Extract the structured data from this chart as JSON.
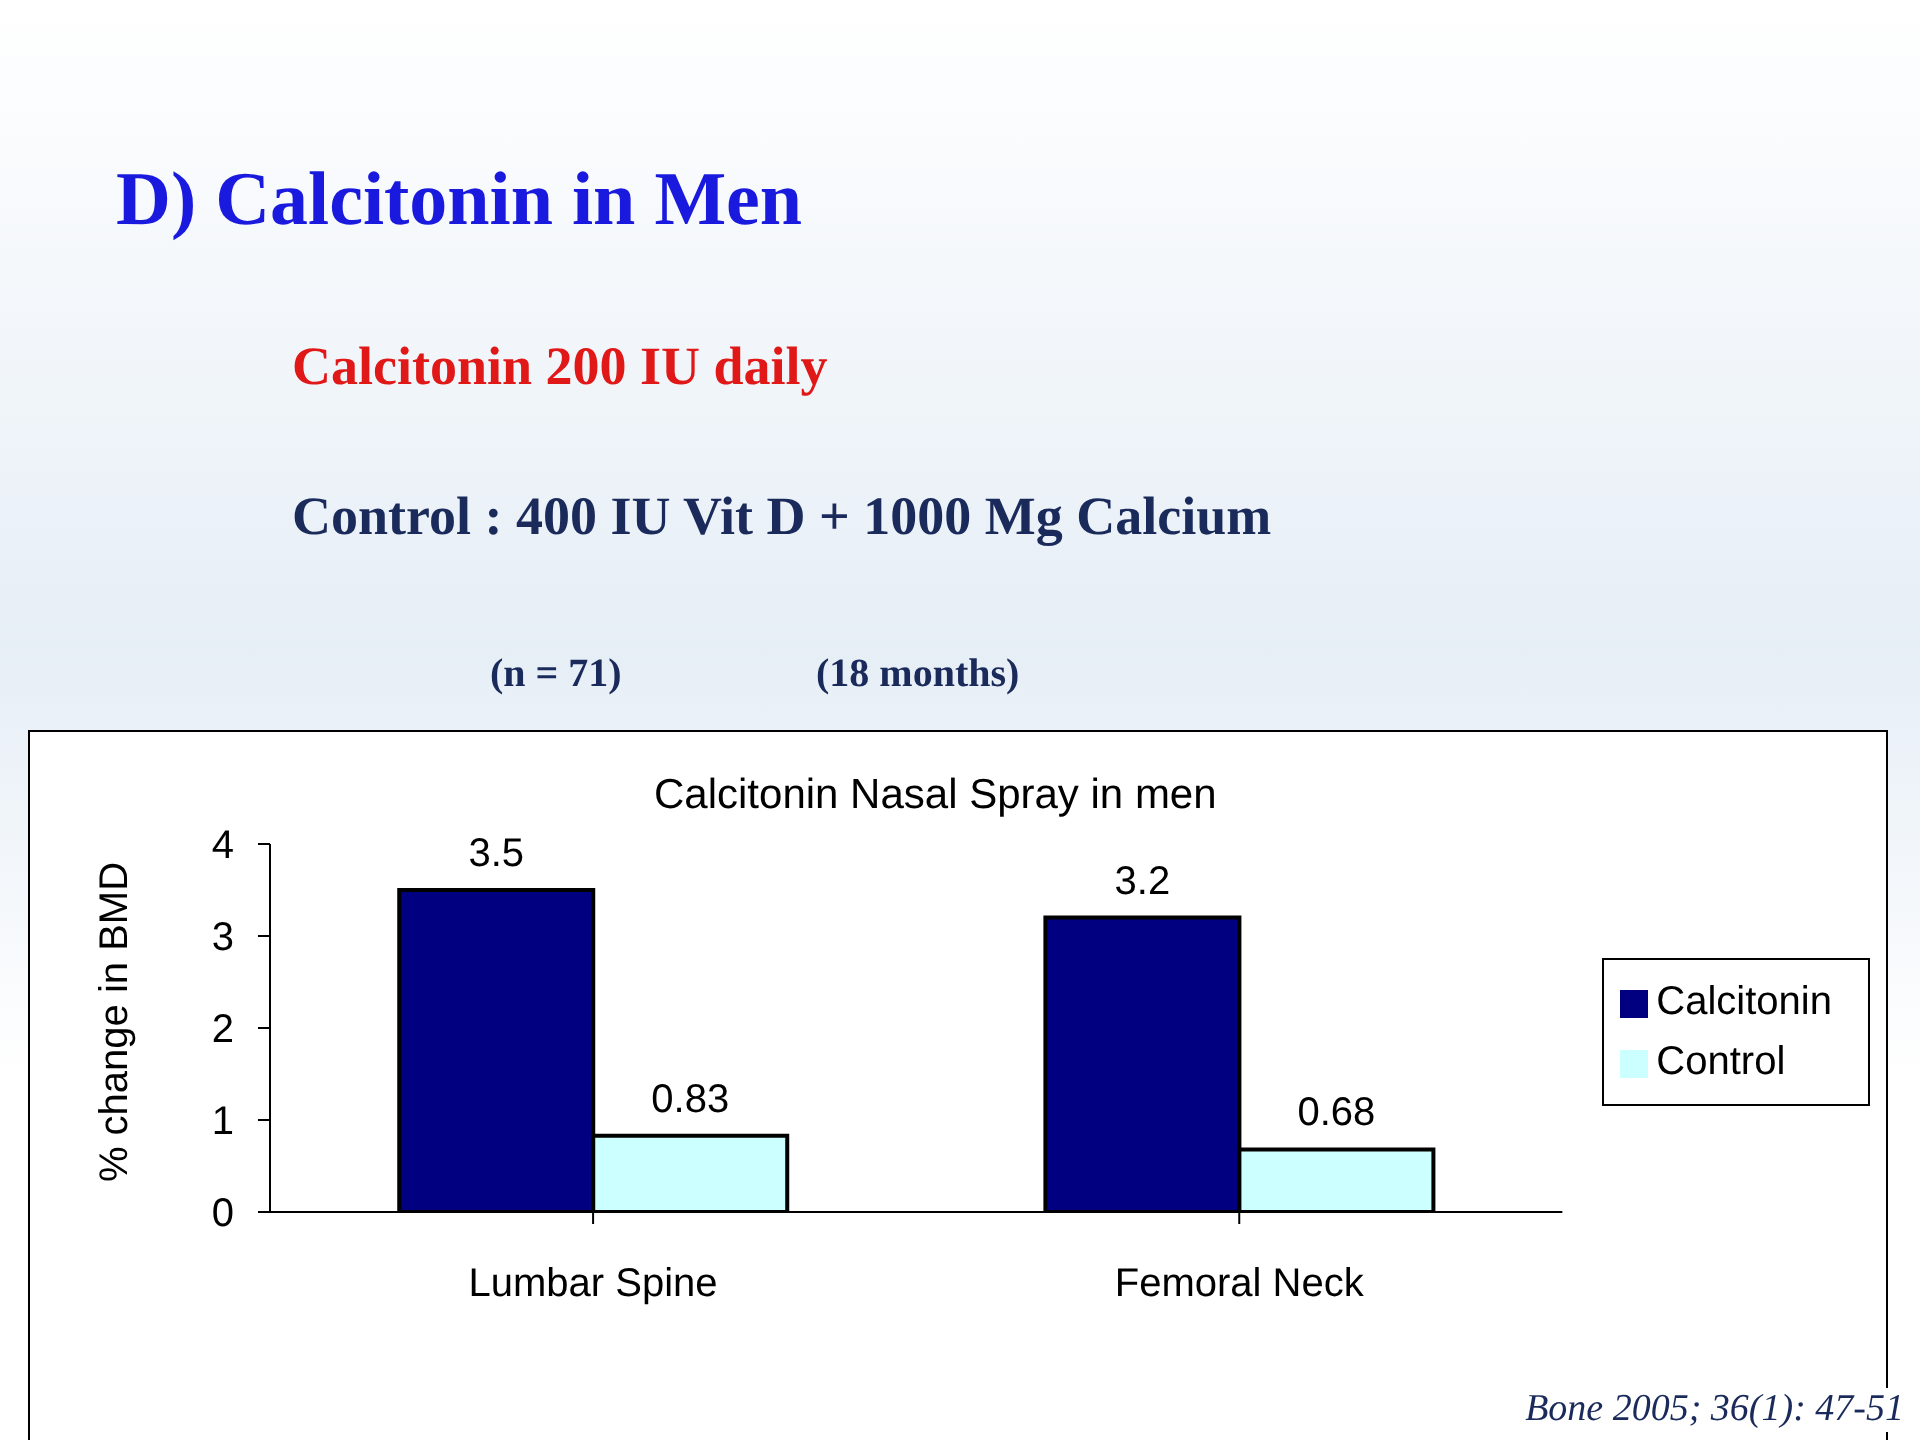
{
  "chart_data": {
    "type": "bar",
    "title": "D) Calcitonin in Men",
    "subtitle": "Calcitonin 200 IU daily",
    "annotations": [
      "Control : 400 IU Vit D + 1000 Mg Calcium",
      "(n = 71)",
      "(18 months)",
      "Calcitonin Nasal Spray in men",
      "Bone 2005; 36(1): 47-51"
    ],
    "ylabel": "% change in BMD",
    "categories": [
      "Lumbar Spine",
      "Femoral Neck"
    ],
    "series": [
      {
        "name": "Calcitonin",
        "color": "#000080",
        "values": [
          3.5,
          3.2
        ]
      },
      {
        "name": "Control",
        "color": "#ccffff",
        "values": [
          0.83,
          0.68
        ]
      }
    ],
    "ylim": [
      0,
      4
    ],
    "yticks": [
      0,
      1,
      2,
      3,
      4
    ],
    "grid": false,
    "legend": "right",
    "data_labels": true
  }
}
